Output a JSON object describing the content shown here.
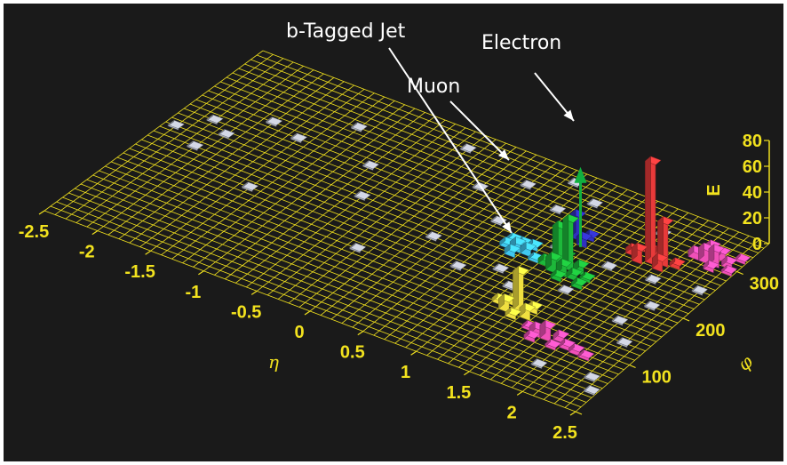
{
  "chart_data": {
    "type": "lego-plot",
    "title": "",
    "xlabel": "η",
    "ylabel": "φ",
    "zlabel": "E",
    "eta_ticks": [
      "-2.5",
      "-2",
      "-1.5",
      "-1",
      "-0.5",
      "0",
      "0.5",
      "1",
      "1.5",
      "2",
      "2.5"
    ],
    "phi_ticks": [
      "0",
      "100",
      "200",
      "300"
    ],
    "e_ticks": [
      "0",
      "20",
      "40",
      "60",
      "80"
    ],
    "xlim": [
      -2.5,
      2.5
    ],
    "ylim": [
      0,
      360
    ],
    "zlim": [
      0,
      80
    ],
    "grid": true,
    "annotations": [
      {
        "label": "b-Tagged Jet",
        "points_to": "blue"
      },
      {
        "label": "Muon",
        "points_to": "green arrow"
      },
      {
        "label": "Electron",
        "points_to": "red"
      }
    ],
    "colors": {
      "background": "#1a1a1a",
      "grid": "#f0e01e",
      "text": "#f2e21e",
      "annotation": "#ffffff",
      "electron": "#e83a3a",
      "muon": "#10b040",
      "jet_blue": "#3030c0",
      "jet_green": "#1db83a",
      "jet_cyan": "#40c8f0",
      "jet_yellow": "#f0e040",
      "jet_magenta": "#f050b8",
      "noise": "#b8bcc8"
    },
    "clusters": [
      {
        "color": "red",
        "towers": [
          {
            "eta": 1.85,
            "phi": 268,
            "e": 78
          },
          {
            "eta": 1.95,
            "phi": 272,
            "e": 33
          },
          {
            "eta": 1.75,
            "phi": 262,
            "e": 10
          },
          {
            "eta": 1.95,
            "phi": 262,
            "e": 8
          },
          {
            "eta": 1.65,
            "phi": 270,
            "e": 4
          },
          {
            "eta": 2.05,
            "phi": 275,
            "e": 3
          },
          {
            "eta": 1.85,
            "phi": 280,
            "e": 4
          },
          {
            "eta": 1.75,
            "phi": 282,
            "e": 3
          }
        ]
      },
      {
        "color": "blue",
        "towers": [
          {
            "eta": 1.15,
            "phi": 262,
            "e": 18
          },
          {
            "eta": 1.05,
            "phi": 268,
            "e": 8
          },
          {
            "eta": 1.25,
            "phi": 255,
            "e": 6
          },
          {
            "eta": 1.05,
            "phi": 255,
            "e": 3
          },
          {
            "eta": 1.25,
            "phi": 268,
            "e": 3
          }
        ]
      },
      {
        "color": "green",
        "towers": [
          {
            "eta": 1.35,
            "phi": 212,
            "e": 38
          },
          {
            "eta": 1.25,
            "phi": 212,
            "e": 30
          },
          {
            "eta": 1.25,
            "phi": 200,
            "e": 10
          },
          {
            "eta": 1.35,
            "phi": 200,
            "e": 8
          },
          {
            "eta": 1.45,
            "phi": 212,
            "e": 6
          },
          {
            "eta": 1.15,
            "phi": 205,
            "e": 4
          },
          {
            "eta": 1.45,
            "phi": 200,
            "e": 4
          },
          {
            "eta": 1.35,
            "phi": 190,
            "e": 3
          },
          {
            "eta": 1.55,
            "phi": 190,
            "e": 3
          },
          {
            "eta": 1.25,
            "phi": 225,
            "e": 3
          },
          {
            "eta": 1.55,
            "phi": 205,
            "e": 2
          }
        ]
      },
      {
        "color": "cyan",
        "towers": [
          {
            "eta": 0.85,
            "phi": 210,
            "e": 6
          },
          {
            "eta": 0.95,
            "phi": 210,
            "e": 5
          },
          {
            "eta": 0.85,
            "phi": 200,
            "e": 4
          },
          {
            "eta": 0.75,
            "phi": 210,
            "e": 3
          },
          {
            "eta": 0.95,
            "phi": 222,
            "e": 3
          },
          {
            "eta": 0.75,
            "phi": 222,
            "e": 2
          },
          {
            "eta": 1.05,
            "phi": 205,
            "e": 2
          },
          {
            "eta": 0.85,
            "phi": 222,
            "e": 2
          }
        ]
      },
      {
        "color": "yellow",
        "towers": [
          {
            "eta": 1.35,
            "phi": 122,
            "e": 30
          },
          {
            "eta": 1.25,
            "phi": 115,
            "e": 8
          },
          {
            "eta": 1.45,
            "phi": 115,
            "e": 7
          },
          {
            "eta": 1.25,
            "phi": 128,
            "e": 4
          },
          {
            "eta": 1.45,
            "phi": 128,
            "e": 4
          },
          {
            "eta": 1.35,
            "phi": 108,
            "e": 3
          },
          {
            "eta": 1.15,
            "phi": 122,
            "e": 3
          }
        ]
      },
      {
        "color": "magenta",
        "towers": [
          {
            "eta": 1.75,
            "phi": 95,
            "e": 10
          },
          {
            "eta": 1.65,
            "phi": 95,
            "e": 6
          },
          {
            "eta": 1.85,
            "phi": 100,
            "e": 4
          },
          {
            "eta": 1.95,
            "phi": 92,
            "e": 3
          },
          {
            "eta": 1.65,
            "phi": 85,
            "e": 3
          },
          {
            "eta": 2.05,
            "phi": 90,
            "e": 3
          },
          {
            "eta": 1.55,
            "phi": 100,
            "e": 2
          },
          {
            "eta": 2.15,
            "phi": 88,
            "e": 2
          },
          {
            "eta": 1.85,
            "phi": 85,
            "e": 2
          }
        ]
      },
      {
        "color": "magenta",
        "towers": [
          {
            "eta": 2.3,
            "phi": 300,
            "e": 12
          },
          {
            "eta": 2.2,
            "phi": 300,
            "e": 10
          },
          {
            "eta": 2.2,
            "phi": 312,
            "e": 8
          },
          {
            "eta": 2.3,
            "phi": 312,
            "e": 6
          },
          {
            "eta": 2.1,
            "phi": 300,
            "e": 5
          },
          {
            "eta": 2.4,
            "phi": 305,
            "e": 4
          },
          {
            "eta": 2.3,
            "phi": 290,
            "e": 3
          },
          {
            "eta": 2.45,
            "phi": 295,
            "e": 2
          },
          {
            "eta": 2.45,
            "phi": 320,
            "e": 2
          }
        ]
      }
    ],
    "muon": {
      "eta": 1.25,
      "phi": 248,
      "e": 58
    },
    "noise_towers": [
      {
        "eta": -2.4,
        "phi": 200,
        "e": 1
      },
      {
        "eta": -2.2,
        "phi": 230,
        "e": 1
      },
      {
        "eta": -2.0,
        "phi": 215,
        "e": 1
      },
      {
        "eta": -1.8,
        "phi": 260,
        "e": 1
      },
      {
        "eta": -2.1,
        "phi": 180,
        "e": 1
      },
      {
        "eta": -1.5,
        "phi": 250,
        "e": 1
      },
      {
        "eta": -1.2,
        "phi": 300,
        "e": 1
      },
      {
        "eta": -1.4,
        "phi": 150,
        "e": 1
      },
      {
        "eta": -0.8,
        "phi": 250,
        "e": 1
      },
      {
        "eta": -0.6,
        "phi": 200,
        "e": 1
      },
      {
        "eta": -0.3,
        "phi": 330,
        "e": 1
      },
      {
        "eta": -0.2,
        "phi": 120,
        "e": 1
      },
      {
        "eta": 0.1,
        "phi": 280,
        "e": 1
      },
      {
        "eta": 0.2,
        "phi": 180,
        "e": 1
      },
      {
        "eta": 0.4,
        "phi": 310,
        "e": 1
      },
      {
        "eta": 0.5,
        "phi": 240,
        "e": 1
      },
      {
        "eta": 0.6,
        "phi": 150,
        "e": 1
      },
      {
        "eta": 0.7,
        "phi": 340,
        "e": 1
      },
      {
        "eta": 0.8,
        "phi": 290,
        "e": 1
      },
      {
        "eta": 0.9,
        "phi": 170,
        "e": 1
      },
      {
        "eta": 1.0,
        "phi": 320,
        "e": 1
      },
      {
        "eta": 1.1,
        "phi": 150,
        "e": 1
      },
      {
        "eta": 1.1,
        "phi": 235,
        "e": 1
      },
      {
        "eta": 1.5,
        "phi": 175,
        "e": 1
      },
      {
        "eta": 1.6,
        "phi": 235,
        "e": 1
      },
      {
        "eta": 1.7,
        "phi": 315,
        "e": 1
      },
      {
        "eta": 2.0,
        "phi": 240,
        "e": 1
      },
      {
        "eta": 2.1,
        "phi": 160,
        "e": 1
      },
      {
        "eta": 2.2,
        "phi": 200,
        "e": 1
      },
      {
        "eta": 2.3,
        "phi": 130,
        "e": 1
      },
      {
        "eta": 2.4,
        "phi": 250,
        "e": 1
      },
      {
        "eta": 2.35,
        "phi": 60,
        "e": 1
      },
      {
        "eta": 2.45,
        "phi": 40,
        "e": 1
      },
      {
        "eta": 1.9,
        "phi": 50,
        "e": 1
      }
    ]
  }
}
